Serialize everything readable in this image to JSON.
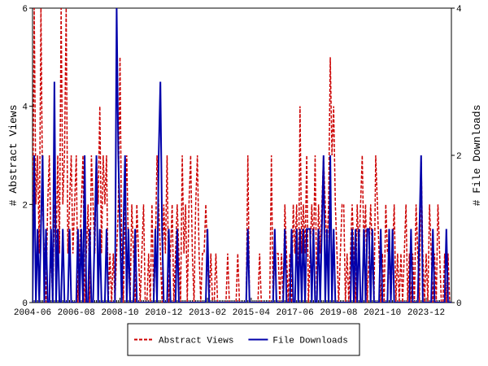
{
  "chart_data": {
    "type": "line",
    "y_label": "# Abstract Views",
    "y2_label": "# File Downloads",
    "categories": [
      "2004-06",
      null,
      null,
      null,
      null,
      null,
      null,
      null,
      null,
      null,
      null,
      null,
      null,
      null,
      null,
      null,
      null,
      null,
      null,
      null,
      null,
      null,
      null,
      null,
      null,
      null,
      "2006-08",
      null,
      null,
      null,
      null,
      null,
      null,
      null,
      null,
      null,
      null,
      null,
      null,
      null,
      null,
      null,
      null,
      null,
      null,
      null,
      null,
      null,
      null,
      null,
      null,
      null,
      "2008-10",
      null,
      null,
      null,
      null,
      null,
      null,
      null,
      null,
      null,
      null,
      null,
      null,
      null,
      null,
      null,
      null,
      null,
      null,
      null,
      null,
      null,
      null,
      null,
      null,
      null,
      "2010-12",
      null,
      null,
      null,
      null,
      null,
      null,
      null,
      null,
      null,
      null,
      null,
      null,
      null,
      null,
      null,
      null,
      null,
      null,
      null,
      null,
      null,
      null,
      null,
      null,
      null,
      "2013-02",
      null,
      null,
      null,
      null,
      null,
      null,
      null,
      null,
      null,
      null,
      null,
      null,
      null,
      null,
      null,
      null,
      null,
      null,
      null,
      null,
      null,
      null,
      null,
      null,
      null,
      "2015-04",
      null,
      null,
      null,
      null,
      null,
      null,
      null,
      null,
      null,
      null,
      null,
      null,
      null,
      null,
      null,
      null,
      null,
      null,
      null,
      null,
      null,
      null,
      null,
      null,
      null,
      "2017-06",
      null,
      null,
      null,
      null,
      null,
      null,
      null,
      null,
      null,
      null,
      null,
      null,
      null,
      null,
      null,
      null,
      null,
      null,
      null,
      null,
      null,
      null,
      null,
      null,
      null,
      "2019-08",
      null,
      null,
      null,
      null,
      null,
      null,
      null,
      null,
      null,
      null,
      null,
      null,
      null,
      null,
      null,
      null,
      null,
      null,
      null,
      null,
      null,
      null,
      null,
      null,
      null,
      "2021-10",
      null,
      null,
      null,
      null,
      null,
      null,
      null,
      null,
      null,
      null,
      null,
      null,
      null,
      null,
      null,
      null,
      null,
      null,
      null,
      null,
      null,
      null,
      null,
      null,
      null,
      "2023-12",
      null,
      null,
      null,
      null,
      null,
      null,
      null,
      null,
      null,
      null,
      null,
      null,
      null,
      null,
      null
    ],
    "series": [
      {
        "name": "Abstract Views",
        "color": "#cc0000",
        "dash": true,
        "values": [
          1,
          6,
          2,
          3,
          1,
          6,
          2,
          1,
          0,
          2,
          3,
          1,
          0,
          2,
          1,
          3,
          1,
          6,
          2,
          3,
          6,
          1,
          2,
          3,
          1,
          2,
          3,
          0,
          1,
          2,
          3,
          0,
          1,
          2,
          0,
          3,
          2,
          1,
          3,
          2,
          4,
          1,
          3,
          2,
          3,
          0,
          1,
          0,
          1,
          0,
          1,
          2,
          5,
          1,
          0,
          2,
          3,
          1,
          0,
          2,
          1,
          0,
          2,
          1,
          0,
          1,
          2,
          0,
          0,
          1,
          0,
          2,
          0,
          1,
          3,
          2,
          1,
          0,
          2,
          1,
          3,
          0,
          1,
          2,
          0,
          1,
          2,
          1,
          0,
          3,
          1,
          2,
          0,
          2,
          3,
          1,
          0,
          2,
          3,
          1,
          0,
          1,
          1,
          2,
          1,
          0,
          1,
          0,
          0,
          1,
          0,
          0,
          0,
          0,
          0,
          0,
          1,
          0,
          0,
          0,
          0,
          0,
          1,
          0,
          0,
          0,
          0,
          0,
          3,
          0,
          0,
          0,
          0,
          0,
          0,
          1,
          0,
          0,
          0,
          0,
          0,
          0,
          3,
          0,
          1,
          1,
          1,
          0,
          1,
          0,
          2,
          1,
          0,
          1,
          0,
          2,
          1,
          2,
          0,
          4,
          1,
          2,
          1,
          3,
          0,
          1,
          2,
          1,
          3,
          0,
          2,
          1,
          2,
          3,
          2,
          1,
          2,
          5,
          3,
          4,
          2,
          1,
          0,
          1,
          2,
          2,
          0,
          1,
          0,
          1,
          2,
          1,
          0,
          2,
          1,
          2,
          3,
          1,
          2,
          0,
          1,
          2,
          1,
          0,
          3,
          2,
          1,
          0,
          1,
          0,
          2,
          1,
          1,
          0,
          1,
          2,
          0,
          1,
          0,
          1,
          0,
          1,
          2,
          0,
          1,
          0,
          1,
          0,
          2,
          1,
          0,
          3,
          1,
          0,
          1,
          0,
          2,
          1,
          0,
          1,
          0,
          2,
          1,
          0,
          0,
          1,
          0,
          1,
          0,
          0
        ]
      },
      {
        "name": "File Downloads",
        "color": "#0000aa",
        "dash": false,
        "axis": "y2",
        "values": [
          0,
          2,
          0,
          1,
          0,
          1,
          2,
          0,
          1,
          0,
          0,
          1,
          0,
          3,
          0,
          1,
          0,
          0,
          1,
          0,
          0,
          0,
          1,
          0,
          0,
          0,
          0,
          1,
          0,
          1,
          0,
          2,
          0,
          0,
          1,
          0,
          0,
          1,
          2,
          0,
          1,
          0,
          0,
          0,
          1,
          0,
          0,
          0,
          0,
          0,
          4,
          2,
          1,
          0,
          1,
          2,
          0,
          1,
          0,
          0,
          0,
          1,
          0,
          0,
          0,
          0,
          0,
          0,
          0,
          0,
          0,
          0,
          0,
          1,
          0,
          2,
          3,
          1,
          0,
          0,
          0,
          1,
          0,
          0,
          0,
          0,
          1,
          0,
          0,
          0,
          0,
          0,
          0,
          0,
          0,
          0,
          0,
          0,
          0,
          0,
          0,
          0,
          0,
          0,
          1,
          0,
          0,
          0,
          0,
          0,
          0,
          0,
          0,
          0,
          0,
          0,
          0,
          0,
          0,
          0,
          0,
          0,
          0,
          0,
          0,
          0,
          0,
          0,
          1,
          0,
          0,
          0,
          0,
          0,
          0,
          0,
          0,
          0,
          0,
          0,
          0,
          0,
          0,
          0,
          1,
          0,
          0,
          0,
          0,
          0,
          1,
          0,
          0,
          0,
          1,
          0,
          0,
          1,
          0,
          1,
          0,
          1,
          0,
          1,
          1,
          1,
          0,
          1,
          0,
          0,
          1,
          0,
          1,
          2,
          0,
          1,
          0,
          2,
          0,
          1,
          0,
          0,
          0,
          0,
          0,
          0,
          0,
          0,
          0,
          0,
          1,
          0,
          1,
          0,
          1,
          0,
          0,
          1,
          0,
          1,
          1,
          0,
          1,
          0,
          0,
          0,
          0,
          1,
          0,
          0,
          0,
          0,
          1,
          0,
          1,
          0,
          0,
          0,
          0,
          0,
          0,
          0,
          0,
          0,
          0,
          1,
          0,
          0,
          0,
          0,
          1,
          2,
          0,
          0,
          0,
          0,
          0,
          0,
          1,
          0,
          0,
          0,
          0,
          0,
          0,
          0,
          1,
          0,
          0,
          0
        ]
      }
    ],
    "ylim": [
      0,
      6
    ],
    "yticks": [
      0,
      2,
      4,
      6
    ],
    "y2lim": [
      0,
      4
    ],
    "y2ticks": [
      0,
      2,
      4
    ],
    "legend": "bottom"
  }
}
